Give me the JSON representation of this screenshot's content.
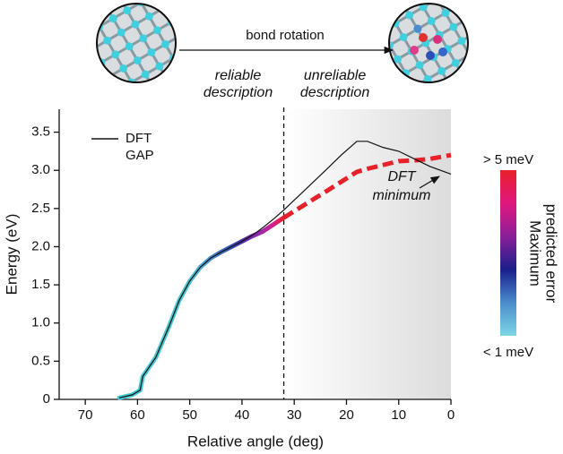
{
  "chart_data": {
    "type": "line",
    "illustration_label": "bond rotation",
    "xlabel": "Relative angle (deg)",
    "ylabel": "Energy (eV)",
    "x": [
      63.5,
      61,
      59.5,
      59,
      56.5,
      54,
      52,
      50,
      48,
      46,
      44,
      42,
      40,
      38,
      36,
      34,
      32,
      28,
      24,
      21,
      18,
      16,
      13,
      10,
      7,
      4,
      0
    ],
    "series": [
      {
        "name": "DFT",
        "color": "#111111",
        "values": [
          0.02,
          0.06,
          0.12,
          0.3,
          0.55,
          0.95,
          1.3,
          1.55,
          1.73,
          1.85,
          1.93,
          2.0,
          2.07,
          2.15,
          2.25,
          2.36,
          2.48,
          2.74,
          3.0,
          3.2,
          3.38,
          3.38,
          3.3,
          3.25,
          3.15,
          3.05,
          2.95
        ]
      },
      {
        "name": "GAP",
        "colors": [
          "#45c8d2",
          "#45c8d2",
          "#45c8d2",
          "#45c8d2",
          "#45c8d2",
          "#45c8d2",
          "#45c8d2",
          "#45c8d2",
          "#4bb0d8",
          "#4a90d0",
          "#3f6fc0",
          "#3550b0",
          "#4a2fa8",
          "#7a2aa8",
          "#a826a8",
          "#d9208c",
          "#e8202a",
          "#e8202a",
          "#e8202a",
          "#e8202a",
          "#e8202a",
          "#e8202a",
          "#e8202a",
          "#e8202a",
          "#e8202a",
          "#e8202a",
          "#e8202a"
        ],
        "values": [
          0.02,
          0.06,
          0.12,
          0.3,
          0.55,
          0.95,
          1.3,
          1.55,
          1.73,
          1.85,
          1.93,
          2.0,
          2.07,
          2.14,
          2.2,
          2.29,
          2.38,
          2.55,
          2.72,
          2.85,
          2.98,
          3.02,
          3.07,
          3.12,
          3.13,
          3.15,
          3.2
        ]
      }
    ],
    "xlim": [
      75,
      0
    ],
    "xticks": [
      70,
      60,
      50,
      40,
      30,
      20,
      10,
      0
    ],
    "ylim": [
      0,
      3.8
    ],
    "yticks": [
      0,
      0.5,
      {
        "value": 1,
        "label": "1.0"
      },
      1.5,
      {
        "value": 2,
        "label": "2.0"
      },
      2.5,
      {
        "value": 3,
        "label": "3.0"
      },
      3.5
    ],
    "legend": "upper left",
    "divider_x": 32,
    "region_labels": [
      [
        "reliable",
        "description"
      ],
      [
        "unreliable",
        "description"
      ]
    ],
    "annotation": {
      "lines": [
        "DFT",
        "minimum"
      ]
    },
    "colorbar": {
      "colors": [
        "#7fd6e6",
        "#4a8ccc",
        "#1a1f8c",
        "#8a1f98",
        "#e0187e",
        "#e8202a"
      ],
      "top_label": "> 5 meV",
      "bottom_label": "< 1 meV",
      "title": [
        "Maximum",
        "predicted error"
      ]
    }
  }
}
